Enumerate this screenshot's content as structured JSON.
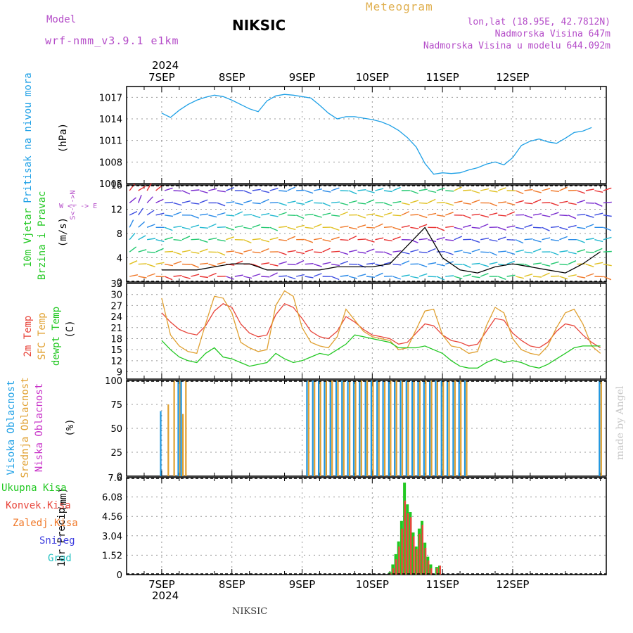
{
  "header": {
    "model_label": "Model",
    "model_name": "wrf-nmm_v3.9.1 e1km",
    "station": "NIKSIC",
    "meteogram": "Meteogram",
    "location": "lon,lat (18.95E, 42.7812N)",
    "altitude": "Nadmorska Visina 647m",
    "model_altitude": "Nadmorska Visina u modelu 644.092m",
    "year_top": "2024",
    "year_bottom": "2024",
    "footer_station": "NIKSIC",
    "watermark": "made by Angel"
  },
  "colors": {
    "pressure": "#1ea0e6",
    "temp2m": "#e8463c",
    "sfc": "#e0a030",
    "dewpt": "#22c822",
    "high_cloud": "#1e96e0",
    "mid_cloud": "#e0a030",
    "low_cloud": "#c832c8",
    "total_precip": "#22c822",
    "conv_precip": "#e8463c",
    "grid_precip": "#f07828",
    "snow": "#4040e0",
    "hail": "#20c0c0"
  },
  "chart_data": [
    {
      "type": "line",
      "panel": "pressure",
      "ylabel_colored": "Pritisak na nivou mora",
      "unit": "(hPa)",
      "ylim": [
        1005,
        1018.5
      ],
      "yticks": [
        1005,
        1008,
        1011,
        1014,
        1017
      ],
      "x_day_labels": [
        "7SEP",
        "8SEP",
        "9SEP",
        "10SEP",
        "11SEP",
        "12SEP"
      ],
      "x_hours": [
        0,
        3,
        6,
        9,
        12,
        15,
        18,
        21,
        24,
        27,
        30,
        33,
        36,
        39,
        42,
        45,
        48,
        51,
        54,
        57,
        60,
        63,
        66,
        69,
        72,
        75,
        78,
        81,
        84,
        87,
        90,
        93,
        96,
        99,
        102,
        105,
        108,
        111,
        114,
        117,
        120,
        123,
        126,
        129,
        132,
        135,
        138,
        141,
        144,
        147
      ],
      "values": [
        1014.8,
        1014.2,
        1015.2,
        1016.0,
        1016.6,
        1017.0,
        1017.3,
        1017.1,
        1016.6,
        1016.0,
        1015.4,
        1015.0,
        1016.5,
        1017.2,
        1017.4,
        1017.3,
        1017.1,
        1016.9,
        1015.9,
        1014.8,
        1014.0,
        1014.3,
        1014.3,
        1014.1,
        1013.9,
        1013.6,
        1013.1,
        1012.4,
        1011.4,
        1010.1,
        1007.8,
        1006.3,
        1006.5,
        1006.4,
        1006.5,
        1006.9,
        1007.2,
        1007.7,
        1008.0,
        1007.6,
        1008.6,
        1010.3,
        1010.9,
        1011.2,
        1010.8,
        1010.6,
        1011.3,
        1012.1,
        1012.3,
        1012.8
      ]
    },
    {
      "type": "barbs",
      "panel": "wind",
      "ylabel_colored_1": "10m Vjetar",
      "ylabel_colored_2": "Brzina i Pravac",
      "unit": "(m/s)",
      "ylim": [
        0,
        16
      ],
      "yticks": [
        0,
        4,
        8,
        12,
        16
      ],
      "direction_legend": "W <- -> E",
      "ns_legend": "S<-|->N",
      "speed_x_hours": [
        0,
        6,
        12,
        18,
        24,
        30,
        36,
        42,
        48,
        54,
        60,
        66,
        72,
        78,
        84,
        90,
        96,
        102,
        108,
        114,
        120,
        126,
        132,
        138,
        144,
        150
      ],
      "speed_values": [
        2,
        2,
        2,
        2.5,
        3,
        3,
        2,
        2,
        2,
        2,
        2.5,
        2.5,
        2.5,
        3,
        6,
        9,
        4,
        2,
        1.5,
        2.5,
        3,
        2.5,
        2,
        1.5,
        3,
        5
      ]
    },
    {
      "type": "line",
      "panel": "temperature",
      "ylabel_colored_1": "2m Temp",
      "ylabel_colored_2": "SFC Temp",
      "ylabel_colored_3": "dewpt Temp",
      "unit": "(C)",
      "ylim": [
        7,
        33
      ],
      "yticks": [
        9,
        12,
        15,
        18,
        21,
        24,
        27,
        30,
        33
      ],
      "x_hours": [
        0,
        3,
        6,
        9,
        12,
        15,
        18,
        21,
        24,
        27,
        30,
        33,
        36,
        39,
        42,
        45,
        48,
        51,
        54,
        57,
        60,
        63,
        66,
        69,
        72,
        75,
        78,
        81,
        84,
        87,
        90,
        93,
        96,
        99,
        102,
        105,
        108,
        111,
        114,
        117,
        120,
        123,
        126,
        129,
        132,
        135,
        138,
        141,
        144,
        147,
        150
      ],
      "series": [
        {
          "name": "2m Temp",
          "values": [
            25,
            22.5,
            20.5,
            19.5,
            19,
            21.5,
            25.5,
            27.5,
            26.5,
            22,
            19.5,
            18.5,
            19,
            24.5,
            27.5,
            26.5,
            23.5,
            20,
            18.5,
            18,
            20,
            24,
            22.5,
            20.5,
            19,
            18.5,
            18,
            16.5,
            17,
            19.5,
            22,
            21.5,
            19,
            17.5,
            17,
            16,
            16.5,
            20,
            23.5,
            23,
            19.5,
            17.5,
            16,
            15.5,
            17,
            20,
            22,
            21.5,
            19,
            17,
            15.5
          ]
        },
        {
          "name": "SFC Temp",
          "values": [
            29,
            19,
            16,
            14.5,
            14,
            22,
            29.5,
            29,
            25,
            17,
            15.5,
            14.5,
            15,
            27,
            31,
            29.5,
            21,
            17,
            16,
            15.5,
            18.5,
            26,
            23,
            20,
            18.5,
            18,
            17.5,
            15,
            15.5,
            20.5,
            25.5,
            26,
            19,
            16,
            15.5,
            14,
            14.5,
            21.5,
            26.5,
            25,
            18,
            15,
            14,
            13.5,
            16,
            21,
            25,
            26,
            22,
            16,
            14
          ]
        },
        {
          "name": "dewpt Temp",
          "values": [
            17.5,
            15,
            13,
            12,
            11.5,
            14,
            15.5,
            13,
            12.5,
            11.5,
            10.5,
            11,
            11.5,
            14,
            12.5,
            11.5,
            12,
            13,
            14,
            13.5,
            15,
            16.5,
            19,
            18.5,
            18,
            17.5,
            17,
            15.5,
            15.5,
            15.5,
            16,
            15,
            14,
            12,
            10.5,
            10,
            10,
            11.5,
            12.5,
            11.5,
            12,
            11.5,
            10.5,
            10,
            11,
            12.5,
            14,
            15.5,
            16,
            16,
            16
          ]
        }
      ]
    },
    {
      "type": "bar",
      "panel": "clouds",
      "ylabel_colored_1": "Visoka Oblacnost",
      "ylabel_colored_2": "Srednja Oblacnost",
      "ylabel_colored_3": "Niska Oblacnost",
      "unit": "(%)",
      "ylim": [
        0,
        100
      ],
      "yticks": [
        0,
        25,
        50,
        75,
        100
      ],
      "x_hours": [
        0,
        2,
        4,
        6,
        7,
        8,
        9,
        10,
        12,
        14,
        16,
        18,
        20,
        22,
        24,
        26,
        28,
        30,
        32,
        34,
        36,
        38,
        40,
        42,
        44,
        46,
        48,
        50,
        52,
        54,
        56,
        58,
        60,
        62,
        64,
        66,
        68,
        70,
        72,
        74,
        76,
        78,
        80,
        82,
        84,
        86,
        88,
        90,
        92,
        94,
        96,
        98,
        100,
        102,
        104,
        106,
        108,
        110,
        112,
        114,
        116,
        118,
        120,
        122,
        124,
        126,
        128,
        130,
        132,
        134,
        136,
        138,
        140,
        142,
        144,
        146,
        148,
        150
      ],
      "series": [
        {
          "name": "Visoka Oblacnost",
          "values": [
            68,
            0,
            0,
            100,
            100,
            0,
            0,
            0,
            0,
            0,
            0,
            0,
            0,
            0,
            0,
            0,
            0,
            0,
            0,
            0,
            0,
            0,
            0,
            0,
            0,
            0,
            0,
            100,
            100,
            100,
            100,
            100,
            100,
            100,
            100,
            100,
            100,
            100,
            100,
            100,
            100,
            100,
            100,
            100,
            100,
            100,
            100,
            100,
            100,
            100,
            100,
            100,
            100,
            100,
            100,
            0,
            0,
            0,
            0,
            0,
            0,
            0,
            0,
            0,
            0,
            0,
            0,
            0,
            0,
            0,
            0,
            0,
            0,
            0,
            0,
            0,
            0,
            100
          ]
        },
        {
          "name": "Srednja Oblacnost",
          "values": [
            0,
            75,
            100,
            100,
            65,
            100,
            0,
            0,
            0,
            0,
            0,
            0,
            0,
            0,
            0,
            0,
            0,
            0,
            0,
            0,
            0,
            0,
            0,
            0,
            0,
            0,
            0,
            100,
            100,
            100,
            100,
            100,
            100,
            100,
            100,
            100,
            100,
            100,
            100,
            100,
            100,
            100,
            100,
            100,
            100,
            100,
            100,
            100,
            100,
            100,
            100,
            100,
            100,
            100,
            100,
            0,
            0,
            0,
            0,
            0,
            0,
            0,
            0,
            0,
            0,
            0,
            0,
            0,
            0,
            0,
            0,
            0,
            0,
            0,
            0,
            0,
            0,
            100
          ]
        },
        {
          "name": "Niska Oblacnost",
          "values": [
            0,
            0,
            0,
            0,
            0,
            0,
            0,
            0,
            0,
            0,
            0,
            0,
            0,
            0,
            0,
            0,
            0,
            0,
            0,
            0,
            0,
            0,
            0,
            0,
            0,
            0,
            0,
            0,
            0,
            0,
            0,
            0,
            0,
            0,
            0,
            0,
            0,
            0,
            0,
            0,
            0,
            0,
            0,
            0,
            0,
            0,
            0,
            0,
            0,
            0,
            0,
            0,
            0,
            0,
            0,
            0,
            0,
            0,
            0,
            0,
            0,
            0,
            0,
            0,
            0,
            0,
            0,
            0,
            0,
            0,
            0,
            0,
            0,
            0,
            0,
            0,
            0,
            0
          ]
        }
      ]
    },
    {
      "type": "bar",
      "panel": "precipitation",
      "ylabel_1": "1hr Precip",
      "unit": "(mm)",
      "ylim": [
        0,
        7.6
      ],
      "yticks": [
        0,
        1.52,
        3.04,
        4.56,
        6.08,
        7.6
      ],
      "x_day_labels": [
        "7SEP",
        "8SEP",
        "9SEP",
        "10SEP",
        "11SEP",
        "12SEP"
      ],
      "legend": [
        "Ukupna Kisa",
        "Konvek.Kisa",
        "Zaledj.Kisa",
        "Snijeg",
        "Grad"
      ],
      "x_hours": [
        78,
        79,
        80,
        81,
        82,
        83,
        84,
        85,
        86,
        87,
        88,
        89,
        90,
        91,
        92,
        94,
        95
      ],
      "series": [
        {
          "name": "Ukupna Kisa",
          "values": [
            0.2,
            0.8,
            1.6,
            2.6,
            4.2,
            7.2,
            5.5,
            4.9,
            3.3,
            2.2,
            3.6,
            4.2,
            2.5,
            1.4,
            0.8,
            0.6,
            0.7
          ]
        },
        {
          "name": "Konvek.Kisa",
          "values": [
            0.1,
            0.5,
            1.2,
            2.2,
            3.6,
            5.8,
            4.8,
            4.5,
            3.0,
            2.0,
            3.2,
            3.9,
            2.1,
            1.1,
            0.5,
            0.5,
            0.7
          ]
        }
      ]
    }
  ]
}
